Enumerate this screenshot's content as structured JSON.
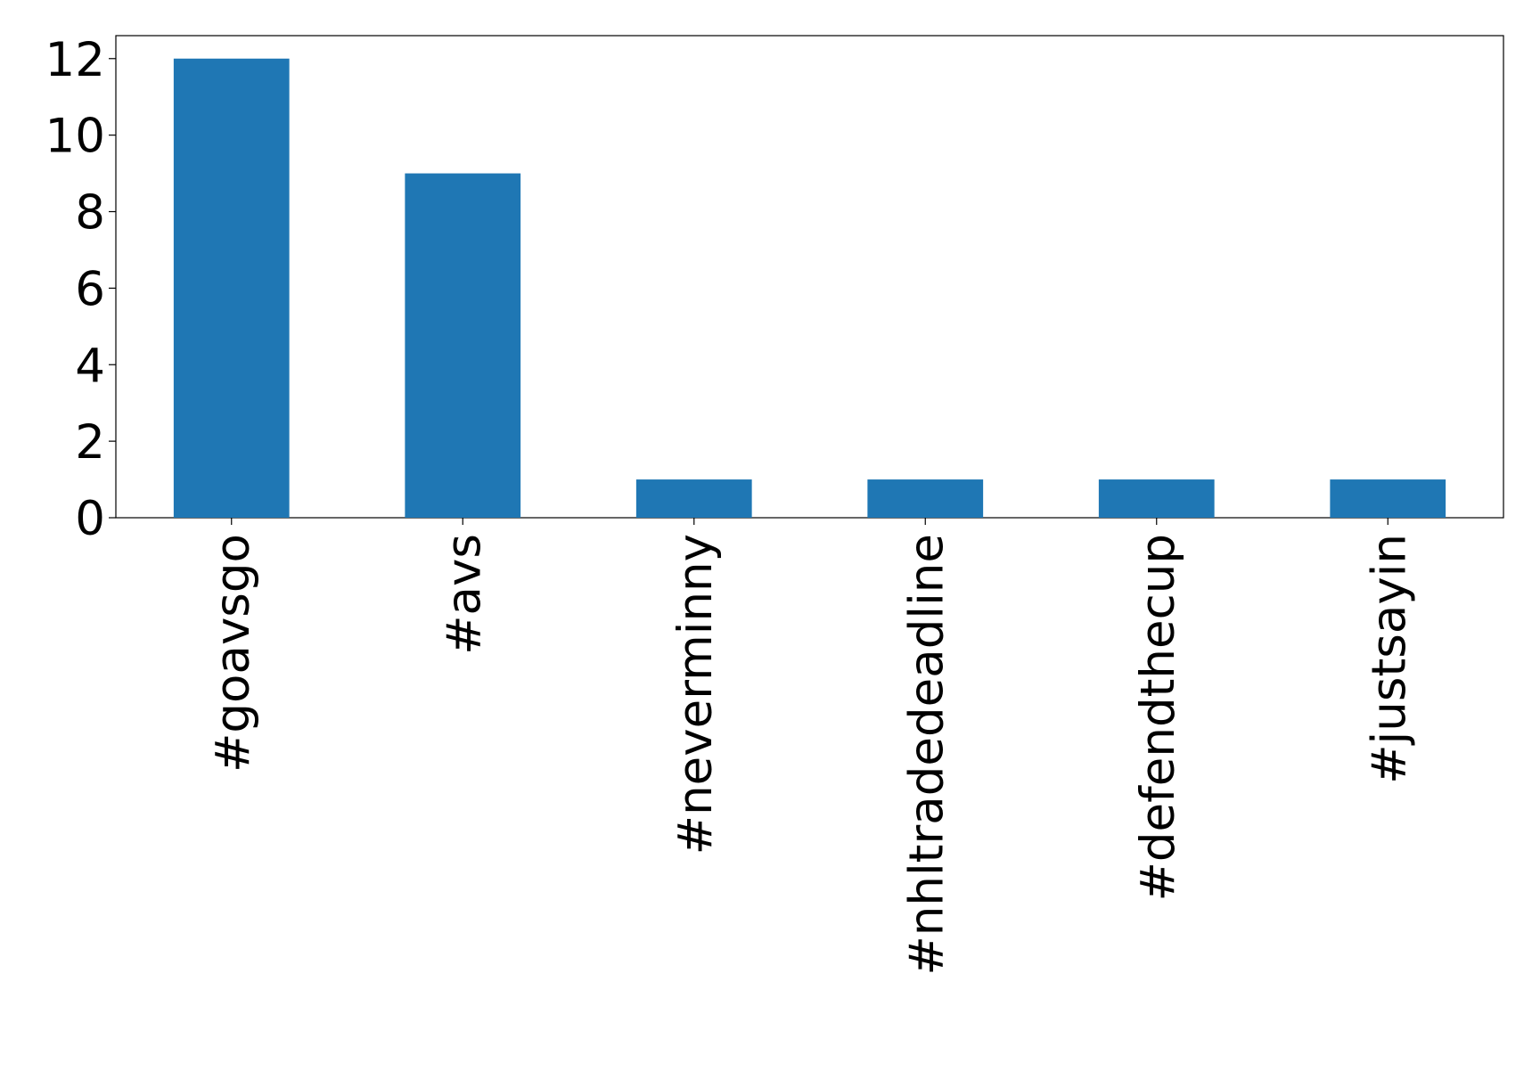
{
  "chart_data": {
    "type": "bar",
    "categories": [
      "#goavsgo",
      "#avs",
      "#neverminny",
      "#nhltradedeadline",
      "#defendthecup",
      "#justsayin"
    ],
    "values": [
      12,
      9,
      1,
      1,
      1,
      1
    ],
    "color": "#1f77b4",
    "ylim": [
      0,
      12.6
    ],
    "yticks": [
      0,
      2,
      4,
      6,
      8,
      10,
      12
    ],
    "grid": false
  }
}
